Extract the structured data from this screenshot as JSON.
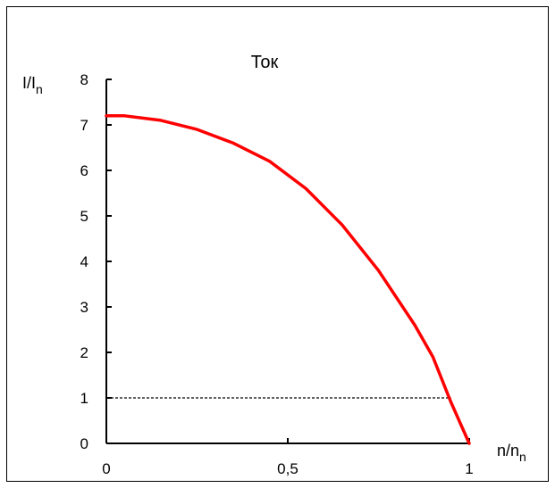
{
  "chart_data": {
    "type": "line",
    "title": "Ток",
    "ylabel": {
      "main": "I/I",
      "sub": "n"
    },
    "xlabel": {
      "main": "n/n",
      "sub": "n"
    },
    "xlim": [
      0,
      1
    ],
    "ylim": [
      0,
      8
    ],
    "xticks": [
      {
        "value": 0,
        "label": "0"
      },
      {
        "value": 0.5,
        "label": "0,5"
      },
      {
        "value": 1,
        "label": "1"
      }
    ],
    "yticks": [
      {
        "value": 0,
        "label": "0"
      },
      {
        "value": 1,
        "label": "1"
      },
      {
        "value": 2,
        "label": "2"
      },
      {
        "value": 3,
        "label": "3"
      },
      {
        "value": 4,
        "label": "4"
      },
      {
        "value": 5,
        "label": "5"
      },
      {
        "value": 6,
        "label": "6"
      },
      {
        "value": 7,
        "label": "7"
      },
      {
        "value": 8,
        "label": "8"
      }
    ],
    "grid": false,
    "series": [
      {
        "color": "#ff0000",
        "x": [
          0,
          0.05,
          0.15,
          0.25,
          0.35,
          0.45,
          0.55,
          0.65,
          0.75,
          0.85,
          0.9,
          0.95,
          1.0
        ],
        "y": [
          7.2,
          7.2,
          7.1,
          6.9,
          6.6,
          6.2,
          5.6,
          4.8,
          3.8,
          2.6,
          1.9,
          0.9,
          0.0
        ]
      }
    ],
    "reference_line": {
      "y": 1,
      "x_from": 0,
      "x_to": 0.95,
      "style": "dotted",
      "color": "#000000"
    }
  }
}
